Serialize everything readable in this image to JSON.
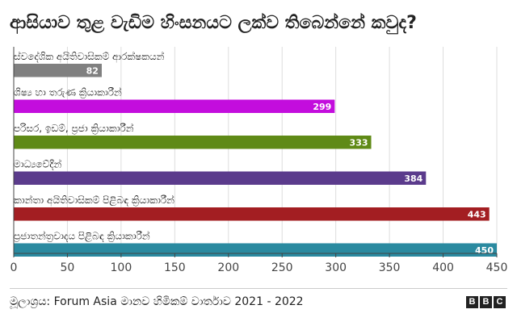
{
  "chart_data": {
    "type": "bar",
    "orientation": "horizontal",
    "title": "ආසියාව තුළ වැඩිම හිංසනයට ලක්ව තිබෙන්නේ කවුද?",
    "categories": [
      "ස්වදේශික අයිතිවාසිකම් ආරක්ෂකයන්",
      "ශිෂ්‍ය හා තරුණ ක්‍රියාකාරීන්",
      "පරිසර, ඉඩම්, ප්‍රජා ක්‍රියාකාරීන්",
      "මාධ්‍යවේදීන්",
      "කාන්තා අයිතිවාසිකම් පිළිබඳ ක්‍රියාකාරීන්",
      "ප්‍රජාතන්ත්‍රවාදය පිළිබඳ ක්‍රියාකාරීන්"
    ],
    "values": [
      82,
      299,
      333,
      384,
      443,
      450
    ],
    "value_labels": [
      "82",
      "299",
      "333",
      "384",
      "443",
      "450"
    ],
    "colors": [
      "#808080",
      "#c30ddd",
      "#5f8a16",
      "#5b3b8c",
      "#a31e22",
      "#2a8aa0"
    ],
    "xlim": [
      0,
      450
    ],
    "xticks": [
      0,
      50,
      100,
      150,
      200,
      250,
      300,
      350,
      400,
      450
    ],
    "xtick_labels": [
      "0",
      "50",
      "100",
      "150",
      "200",
      "250",
      "300",
      "350",
      "400",
      "450"
    ],
    "xlabel": "",
    "ylabel": "",
    "grid": true
  },
  "footer": {
    "source": "මූලාශ්‍රය: Forum Asia මානව හිමිකම් වාර්තාව 2021 - 2022",
    "brand": [
      "B",
      "B",
      "C"
    ]
  }
}
